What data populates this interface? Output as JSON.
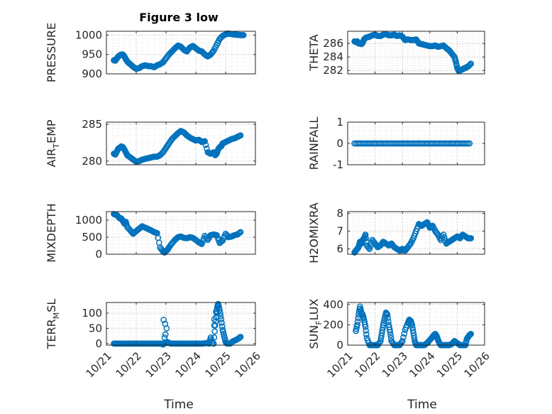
{
  "figure": {
    "title": "Figure 3 low",
    "marker_color": "#0072BD",
    "axis_color": "#262626",
    "grid": "dotted"
  },
  "chart_data": [
    {
      "id": "pressure",
      "type": "scatter",
      "title": "Figure 3 low",
      "ylabel": "PRESSURE",
      "xlabel": "",
      "xlim": [
        0,
        5
      ],
      "ylim": [
        900,
        1010
      ],
      "yticks": [
        900,
        950,
        1000
      ],
      "ytick_labels": [
        "900",
        "950",
        "1000"
      ],
      "xtick_labels": [],
      "x": [
        0.25,
        0.3,
        0.35,
        0.4,
        0.45,
        0.5,
        0.55,
        0.6,
        0.65,
        0.7,
        0.75,
        0.8,
        0.9,
        1.0,
        1.1,
        1.2,
        1.3,
        1.4,
        1.5,
        1.6,
        1.7,
        1.8,
        1.9,
        2.0,
        2.1,
        2.2,
        2.3,
        2.4,
        2.5,
        2.6,
        2.7,
        2.8,
        2.9,
        3.0,
        3.1,
        3.2,
        3.3,
        3.4,
        3.5,
        3.6,
        3.7,
        3.8,
        3.9,
        3.95,
        4.0,
        4.05,
        4.1,
        4.15,
        4.2,
        4.25,
        4.3,
        4.35,
        4.4,
        4.5,
        4.6
      ],
      "y": [
        935,
        934,
        940,
        945,
        948,
        950,
        950,
        945,
        938,
        932,
        928,
        925,
        918,
        913,
        915,
        920,
        922,
        920,
        920,
        917,
        922,
        925,
        930,
        940,
        950,
        958,
        966,
        973,
        970,
        962,
        958,
        968,
        972,
        966,
        960,
        958,
        950,
        945,
        950,
        960,
        975,
        990,
        998,
        1000,
        1002,
        1004,
        1004,
        1003,
        1003,
        1002,
        1002,
        1001,
        1001,
        1000,
        1000
      ]
    },
    {
      "id": "theta",
      "type": "scatter",
      "ylabel": "THETA",
      "xlabel": "",
      "xlim": [
        0,
        5
      ],
      "ylim": [
        281.5,
        287.8
      ],
      "yticks": [
        282,
        284,
        286
      ],
      "ytick_labels": [
        "282",
        "284",
        "286"
      ],
      "xtick_labels": [],
      "x": [
        0.25,
        0.3,
        0.35,
        0.4,
        0.45,
        0.5,
        0.55,
        0.6,
        0.65,
        0.7,
        0.8,
        0.9,
        1.0,
        1.1,
        1.2,
        1.3,
        1.4,
        1.5,
        1.6,
        1.7,
        1.8,
        1.9,
        2.0,
        2.1,
        2.2,
        2.3,
        2.4,
        2.5,
        2.6,
        2.7,
        2.8,
        2.9,
        3.0,
        3.1,
        3.2,
        3.3,
        3.4,
        3.5,
        3.6,
        3.7,
        3.8,
        3.9,
        3.95,
        4.0,
        4.05,
        4.1,
        4.15,
        4.2,
        4.25,
        4.3,
        4.35,
        4.4,
        4.5
      ],
      "y": [
        286.3,
        286.2,
        286.3,
        286.0,
        286.0,
        285.9,
        286.1,
        286.6,
        286.8,
        286.9,
        287.0,
        287.2,
        287.3,
        287.1,
        287.1,
        287.3,
        287.4,
        287.2,
        287.2,
        287.3,
        287.1,
        287.2,
        287.0,
        286.5,
        286.6,
        286.5,
        286.5,
        286.6,
        286.0,
        285.9,
        285.8,
        285.7,
        285.6,
        285.6,
        285.7,
        285.5,
        285.6,
        285.7,
        285.3,
        285.0,
        284.5,
        284.0,
        283.3,
        282.4,
        282.0,
        282.0,
        282.1,
        282.2,
        282.3,
        282.4,
        282.5,
        282.6,
        283.0
      ]
    },
    {
      "id": "air_temp",
      "type": "scatter",
      "ylabel": "AIR_TEMP",
      "ylabel_base": "AIR",
      "ylabel_sub": "T",
      "ylabel_rest": "EMP",
      "xlabel": "",
      "xlim": [
        0,
        5
      ],
      "ylim": [
        279.5,
        285.3
      ],
      "yticks": [
        280,
        285
      ],
      "ytick_labels": [
        "280",
        "285"
      ],
      "xtick_labels": [],
      "x": [
        0.25,
        0.3,
        0.35,
        0.4,
        0.45,
        0.5,
        0.55,
        0.6,
        0.65,
        0.7,
        0.8,
        0.9,
        1.0,
        1.1,
        1.2,
        1.3,
        1.4,
        1.5,
        1.6,
        1.7,
        1.8,
        1.9,
        2.0,
        2.1,
        2.2,
        2.3,
        2.4,
        2.5,
        2.6,
        2.7,
        2.8,
        2.9,
        3.0,
        3.1,
        3.2,
        3.3,
        3.4,
        3.5,
        3.6,
        3.65,
        3.7,
        3.75,
        3.8,
        3.85,
        3.9,
        4.0,
        4.1,
        4.2,
        4.3,
        4.4,
        4.5
      ],
      "y": [
        281.0,
        280.9,
        281.3,
        281.7,
        281.8,
        282.0,
        281.9,
        281.6,
        281.2,
        280.8,
        280.5,
        280.2,
        279.9,
        280.0,
        280.2,
        280.3,
        280.4,
        280.5,
        280.6,
        280.6,
        280.8,
        281.2,
        281.8,
        282.4,
        283.0,
        283.4,
        283.8,
        284.1,
        283.9,
        283.5,
        283.2,
        283.0,
        282.8,
        282.9,
        282.6,
        282.7,
        281.2,
        281.0,
        281.2,
        280.8,
        281.0,
        281.6,
        281.9,
        282.0,
        282.4,
        282.6,
        282.8,
        283.0,
        283.1,
        283.3,
        283.5
      ]
    },
    {
      "id": "rainfall",
      "type": "scatter",
      "ylabel": "RAINFALL",
      "xlabel": "",
      "xlim": [
        0,
        5
      ],
      "ylim": [
        -1,
        1
      ],
      "yticks": [
        -1,
        0,
        1
      ],
      "ytick_labels": [
        "-1",
        "0",
        "1"
      ],
      "xtick_labels": [],
      "x_range": [
        0.25,
        4.5
      ],
      "x_step": 0.06,
      "constant_y": 0
    },
    {
      "id": "mixdepth",
      "type": "scatter",
      "ylabel": "MIXDEPTH",
      "xlabel": "",
      "xlim": [
        0,
        5
      ],
      "ylim": [
        0,
        1250
      ],
      "yticks": [
        0,
        500,
        1000
      ],
      "ytick_labels": [
        "0",
        "500",
        "1000"
      ],
      "xtick_labels": [],
      "x": [
        0.25,
        0.3,
        0.35,
        0.4,
        0.45,
        0.5,
        0.55,
        0.6,
        0.65,
        0.7,
        0.8,
        0.9,
        1.0,
        1.1,
        1.2,
        1.3,
        1.4,
        1.5,
        1.6,
        1.7,
        1.8,
        1.9,
        1.95,
        2.0,
        2.05,
        2.1,
        2.2,
        2.3,
        2.4,
        2.5,
        2.6,
        2.7,
        2.8,
        2.9,
        3.0,
        3.1,
        3.2,
        3.3,
        3.4,
        3.5,
        3.6,
        3.7,
        3.8,
        3.9,
        4.0,
        4.1,
        4.2,
        4.3,
        4.4,
        4.5
      ],
      "y": [
        1180,
        1160,
        1150,
        1100,
        1050,
        1050,
        980,
        900,
        950,
        800,
        700,
        600,
        680,
        750,
        820,
        780,
        740,
        700,
        650,
        620,
        200,
        80,
        50,
        100,
        130,
        200,
        320,
        420,
        500,
        520,
        480,
        470,
        500,
        480,
        420,
        350,
        300,
        540,
        420,
        560,
        580,
        560,
        330,
        400,
        600,
        500,
        520,
        560,
        580,
        650
      ]
    },
    {
      "id": "h2omixra",
      "type": "scatter",
      "ylabel": "H2OMIXRA",
      "xlabel": "",
      "xlim": [
        0,
        5
      ],
      "ylim": [
        5.7,
        8.1
      ],
      "yticks": [
        6,
        7,
        8
      ],
      "ytick_labels": [
        "6",
        "7",
        "8"
      ],
      "xtick_labels": [],
      "x": [
        0.25,
        0.3,
        0.35,
        0.4,
        0.45,
        0.5,
        0.55,
        0.6,
        0.65,
        0.7,
        0.8,
        0.9,
        1.0,
        1.1,
        1.2,
        1.3,
        1.4,
        1.5,
        1.6,
        1.7,
        1.8,
        1.9,
        2.0,
        2.1,
        2.2,
        2.3,
        2.4,
        2.5,
        2.6,
        2.7,
        2.8,
        2.9,
        3.0,
        3.1,
        3.2,
        3.3,
        3.4,
        3.5,
        3.6,
        3.7,
        3.8,
        3.9,
        4.0,
        4.1,
        4.2,
        4.3,
        4.4,
        4.5
      ],
      "y": [
        5.8,
        5.9,
        6.0,
        6.1,
        6.4,
        6.3,
        6.5,
        6.6,
        6.8,
        6.2,
        6.0,
        6.5,
        6.3,
        6.1,
        6.2,
        6.4,
        6.3,
        6.2,
        6.3,
        6.1,
        6.0,
        5.9,
        6.0,
        5.9,
        6.1,
        6.3,
        6.6,
        7.0,
        7.4,
        7.3,
        7.4,
        7.5,
        7.2,
        7.3,
        7.0,
        6.8,
        6.5,
        6.8,
        6.3,
        6.4,
        6.5,
        6.6,
        6.7,
        6.6,
        6.8,
        6.7,
        6.6,
        6.6
      ]
    },
    {
      "id": "terr_msl",
      "type": "scatter",
      "ylabel": "TERR_MSL",
      "ylabel_base": "TERR",
      "ylabel_sub": "M",
      "ylabel_rest": "SL",
      "xlabel": "Time",
      "xlim": [
        0,
        5
      ],
      "ylim": [
        -5,
        135
      ],
      "yticks": [
        0,
        50,
        100
      ],
      "ytick_labels": [
        "0",
        "50",
        "100"
      ],
      "xtick_labels": [
        "10/21",
        "10/22",
        "10/23",
        "10/24",
        "10/25",
        "10/26"
      ],
      "x": [
        0.25,
        0.35,
        0.45,
        0.55,
        0.65,
        0.75,
        0.85,
        0.95,
        1.05,
        1.15,
        1.25,
        1.35,
        1.45,
        1.55,
        1.65,
        1.75,
        1.8,
        1.85,
        1.9,
        1.95,
        2.0,
        2.05,
        2.15,
        2.25,
        2.35,
        2.45,
        2.55,
        2.65,
        2.75,
        2.85,
        2.95,
        3.05,
        3.15,
        3.25,
        3.35,
        3.45,
        3.5,
        3.55,
        3.6,
        3.65,
        3.7,
        3.72,
        3.75,
        3.8,
        3.85,
        3.9,
        3.95,
        4.0,
        4.05,
        4.15,
        4.25,
        4.35,
        4.45,
        4.5
      ],
      "y": [
        0,
        0,
        0,
        0,
        0,
        0,
        0,
        0,
        0,
        0,
        0,
        0,
        0,
        0,
        0,
        0,
        0,
        0,
        -3,
        2,
        2,
        5,
        0,
        0,
        0,
        0,
        0,
        0,
        0,
        0,
        0,
        0,
        0,
        0,
        2,
        0,
        20,
        2,
        0,
        60,
        100,
        120,
        130,
        110,
        80,
        45,
        25,
        5,
        0,
        0,
        8,
        12,
        18,
        22
      ],
      "extra_points": [
        [
          1.92,
          78
        ],
        [
          1.97,
          65
        ],
        [
          2.02,
          50
        ],
        [
          1.98,
          30
        ],
        [
          1.95,
          20
        ],
        [
          3.62,
          80
        ],
        [
          3.68,
          105
        ],
        [
          3.62,
          60
        ]
      ]
    },
    {
      "id": "sun_flux",
      "type": "scatter",
      "ylabel": "SUN_FLUX",
      "ylabel_base": "SUN",
      "ylabel_sub": "F",
      "ylabel_rest": "LUX",
      "xlabel": "Time",
      "xlim": [
        0,
        5
      ],
      "ylim": [
        0,
        420
      ],
      "yticks": [
        0,
        200,
        400
      ],
      "ytick_labels": [
        "0",
        "200",
        "400"
      ],
      "xtick_labels": [
        "10/21",
        "10/22",
        "10/23",
        "10/24",
        "10/25",
        "10/26"
      ],
      "x": [
        0.3,
        0.35,
        0.4,
        0.45,
        0.5,
        0.55,
        0.6,
        0.65,
        0.7,
        0.8,
        0.9,
        1.0,
        1.1,
        1.2,
        1.25,
        1.3,
        1.35,
        1.4,
        1.45,
        1.5,
        1.55,
        1.6,
        1.7,
        1.8,
        1.9,
        2.0,
        2.1,
        2.2,
        2.25,
        2.3,
        2.35,
        2.4,
        2.45,
        2.5,
        2.55,
        2.6,
        2.7,
        2.8,
        2.9,
        3.0,
        3.1,
        3.15,
        3.2,
        3.25,
        3.3,
        3.35,
        3.4,
        3.5,
        3.6,
        3.7,
        3.8,
        3.9,
        4.0,
        4.1,
        4.2,
        4.3,
        4.35,
        4.4,
        4.45,
        4.5
      ],
      "y": [
        140,
        200,
        300,
        380,
        320,
        300,
        250,
        180,
        70,
        0,
        0,
        0,
        0,
        40,
        120,
        200,
        260,
        320,
        300,
        200,
        130,
        40,
        0,
        0,
        0,
        40,
        150,
        220,
        250,
        240,
        200,
        120,
        40,
        0,
        0,
        0,
        0,
        0,
        20,
        50,
        80,
        100,
        110,
        90,
        50,
        20,
        0,
        0,
        0,
        0,
        10,
        40,
        20,
        0,
        0,
        0,
        60,
        80,
        100,
        110
      ]
    }
  ]
}
